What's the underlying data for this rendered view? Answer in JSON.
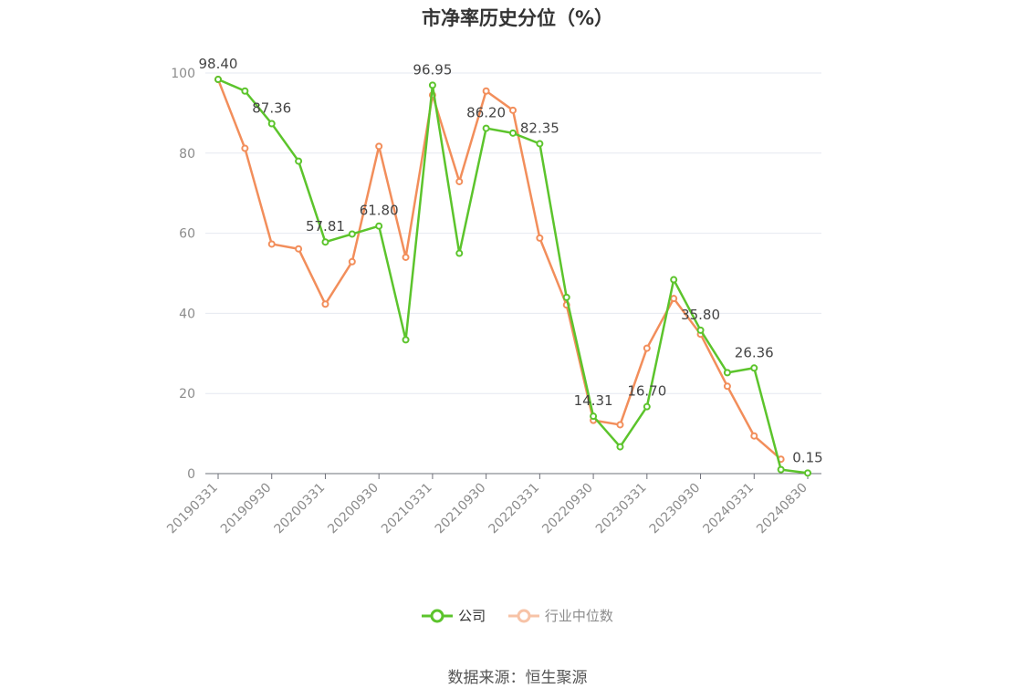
{
  "chart_data": {
    "type": "line",
    "title": "市净率历史分位（%）",
    "ylim": [
      0,
      100
    ],
    "yticks": [
      0,
      20,
      40,
      60,
      80,
      100
    ],
    "x": [
      "20190331",
      "20190630",
      "20190930",
      "20191231",
      "20200331",
      "20200630",
      "20200930",
      "20201231",
      "20210331",
      "20210630",
      "20210930",
      "20211231",
      "20220331",
      "20220630",
      "20220930",
      "20221231",
      "20230331",
      "20230630",
      "20230930",
      "20231231",
      "20240331",
      "20240630",
      "20240830"
    ],
    "xtick_labels": [
      "20190331",
      "20190930",
      "20200331",
      "20200930",
      "20210331",
      "20210930",
      "20220331",
      "20220930",
      "20230331",
      "20230930",
      "20240331",
      "20240830"
    ],
    "series": [
      {
        "name": "公司",
        "color": "#5cc42c",
        "values": [
          98.4,
          95.5,
          87.36,
          78.0,
          57.81,
          59.8,
          61.8,
          33.4,
          96.95,
          55.0,
          86.2,
          85.0,
          82.35,
          44.0,
          14.31,
          6.7,
          16.7,
          48.4,
          35.8,
          25.2,
          26.36,
          1.0,
          0.15
        ],
        "labels": [
          "98.40",
          null,
          "87.36",
          null,
          "57.81",
          null,
          "61.80",
          null,
          "96.95",
          null,
          "86.20",
          null,
          "82.35",
          null,
          "14.31",
          null,
          "16.70",
          null,
          "35.80",
          null,
          "26.36",
          null,
          "0.15"
        ]
      },
      {
        "name": "行业中位数",
        "color": "#f28e5b",
        "values": [
          98.4,
          81.2,
          57.3,
          56.1,
          42.3,
          52.9,
          81.7,
          54.0,
          94.5,
          72.9,
          95.5,
          90.7,
          58.8,
          42.1,
          13.3,
          12.2,
          31.3,
          43.7,
          34.8,
          21.8,
          9.4,
          3.6,
          null
        ]
      }
    ],
    "grid": true,
    "legend_position": "bottom"
  },
  "source": "数据来源：恒生聚源"
}
